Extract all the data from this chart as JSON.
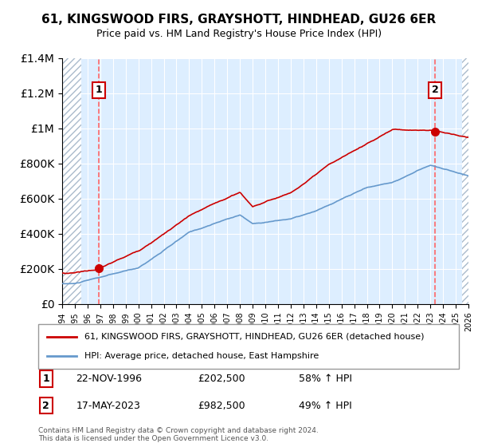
{
  "title": "61, KINGSWOOD FIRS, GRAYSHOTT, HINDHEAD, GU26 6ER",
  "subtitle": "Price paid vs. HM Land Registry's House Price Index (HPI)",
  "legend_line1": "61, KINGSWOOD FIRS, GRAYSHOTT, HINDHEAD, GU26 6ER (detached house)",
  "legend_line2": "HPI: Average price, detached house, East Hampshire",
  "annotation1_label": "1",
  "annotation1_date": "22-NOV-1996",
  "annotation1_price": "£202,500",
  "annotation1_hpi": "58% ↑ HPI",
  "annotation2_label": "2",
  "annotation2_date": "17-MAY-2023",
  "annotation2_price": "£982,500",
  "annotation2_hpi": "49% ↑ HPI",
  "footnote": "Contains HM Land Registry data © Crown copyright and database right 2024.\nThis data is licensed under the Open Government Licence v3.0.",
  "sale1_year": 1996.9,
  "sale1_value": 202500,
  "sale2_year": 2023.38,
  "sale2_value": 982500,
  "x_min": 1994,
  "x_max": 2026,
  "y_min": 0,
  "y_max": 1400000,
  "hatch_color": "#c8d8e8",
  "plot_bg": "#ddeeff",
  "grid_color": "#ffffff",
  "red_line_color": "#cc0000",
  "blue_line_color": "#6699cc",
  "sale_dot_color": "#cc0000",
  "dashed_line_color": "#ff6666"
}
